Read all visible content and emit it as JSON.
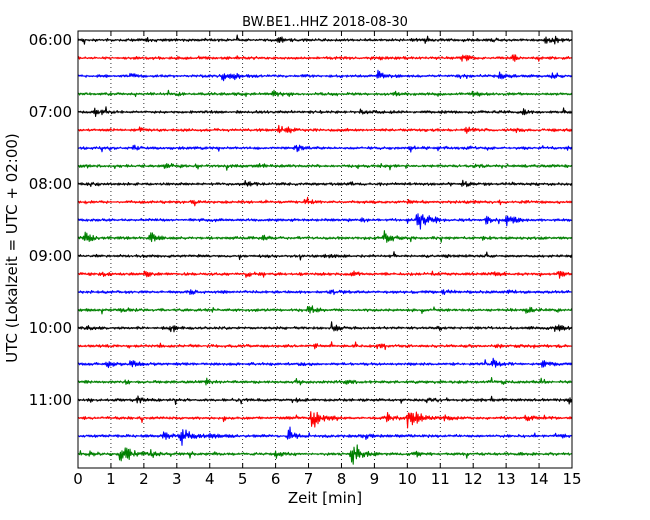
{
  "chart_data": {
    "type": "line",
    "title": "BW.BE1..HHZ 2018-08-30",
    "xlabel": "Zeit  [min]",
    "ylabel": "UTC (Lokalzeit = UTC + 02:00)",
    "xlim": [
      0,
      15
    ],
    "x_ticks": [
      0,
      1,
      2,
      3,
      4,
      5,
      6,
      7,
      8,
      9,
      10,
      11,
      12,
      13,
      14,
      15
    ],
    "x_tick_labels": [
      "0",
      "1",
      "2",
      "3",
      "4",
      "5",
      "6",
      "7",
      "8",
      "9",
      "10",
      "11",
      "12",
      "13",
      "14",
      "15"
    ],
    "grid": "vertical dotted",
    "trace_colors": [
      "#000000",
      "#ff0000",
      "#0000ff",
      "#008000"
    ],
    "y_tick_labels": [
      {
        "label": "06:00",
        "trace_index": 0
      },
      {
        "label": "07:00",
        "trace_index": 4
      },
      {
        "label": "08:00",
        "trace_index": 8
      },
      {
        "label": "09:00",
        "trace_index": 12
      },
      {
        "label": "10:00",
        "trace_index": 16
      },
      {
        "label": "11:00",
        "trace_index": 20
      }
    ],
    "traces": [
      {
        "start": "06:00",
        "events": [
          {
            "t": 6.1,
            "a": 0.35
          },
          {
            "t": 14.2,
            "a": 0.35
          },
          {
            "t": 14.5,
            "a": 0.3
          },
          {
            "t": 2.1,
            "a": 0.15
          },
          {
            "t": 12.6,
            "a": 0.15
          }
        ]
      },
      {
        "start": "06:15",
        "events": [
          {
            "t": 11.6,
            "a": 0.5
          },
          {
            "t": 13.2,
            "a": 0.3
          },
          {
            "t": 9.1,
            "a": 0.15
          },
          {
            "t": 3.0,
            "a": 0.12
          }
        ]
      },
      {
        "start": "06:30",
        "events": [
          {
            "t": 4.4,
            "a": 0.4
          },
          {
            "t": 4.7,
            "a": 0.3
          },
          {
            "t": 9.1,
            "a": 0.45
          },
          {
            "t": 12.8,
            "a": 0.3
          },
          {
            "t": 1.6,
            "a": 0.2
          },
          {
            "t": 14.4,
            "a": 0.15
          }
        ]
      },
      {
        "start": "06:45",
        "events": [
          {
            "t": 5.9,
            "a": 0.4
          },
          {
            "t": 9.6,
            "a": 0.2
          },
          {
            "t": 12.0,
            "a": 0.25
          },
          {
            "t": 3.0,
            "a": 0.12
          }
        ]
      },
      {
        "start": "07:00",
        "events": [
          {
            "t": 0.5,
            "a": 0.45
          },
          {
            "t": 8.6,
            "a": 0.25
          },
          {
            "t": 13.5,
            "a": 0.2
          },
          {
            "t": 11.0,
            "a": 0.12
          }
        ]
      },
      {
        "start": "07:15",
        "events": [
          {
            "t": 1.8,
            "a": 0.3
          },
          {
            "t": 6.1,
            "a": 0.35
          },
          {
            "t": 6.4,
            "a": 0.3
          },
          {
            "t": 11.8,
            "a": 0.25
          },
          {
            "t": 13.3,
            "a": 0.15
          }
        ]
      },
      {
        "start": "07:30",
        "events": [
          {
            "t": 1.7,
            "a": 0.25
          },
          {
            "t": 6.6,
            "a": 0.35
          },
          {
            "t": 10.1,
            "a": 0.3
          },
          {
            "t": 11.7,
            "a": 0.2
          },
          {
            "t": 14.9,
            "a": 0.5
          }
        ]
      },
      {
        "start": "07:45",
        "events": [
          {
            "t": 2.6,
            "a": 0.4
          },
          {
            "t": 5.5,
            "a": 0.2
          },
          {
            "t": 9.2,
            "a": 0.15
          },
          {
            "t": 12.0,
            "a": 0.12
          }
        ]
      },
      {
        "start": "08:00",
        "events": [
          {
            "t": 0.3,
            "a": 0.25
          },
          {
            "t": 5.1,
            "a": 0.35
          },
          {
            "t": 11.7,
            "a": 0.3
          },
          {
            "t": 8.2,
            "a": 0.15
          },
          {
            "t": 13.0,
            "a": 0.15
          }
        ]
      },
      {
        "start": "08:15",
        "events": [
          {
            "t": 6.9,
            "a": 0.3
          },
          {
            "t": 10.0,
            "a": 0.2
          },
          {
            "t": 12.8,
            "a": 0.15
          },
          {
            "t": 3.5,
            "a": 0.12
          }
        ]
      },
      {
        "start": "08:30",
        "events": [
          {
            "t": 10.3,
            "a": 1.2
          },
          {
            "t": 13.0,
            "a": 0.6
          },
          {
            "t": 12.4,
            "a": 0.3
          },
          {
            "t": 8.6,
            "a": 0.2
          },
          {
            "t": 4.2,
            "a": 0.15
          }
        ]
      },
      {
        "start": "08:45",
        "events": [
          {
            "t": 0.2,
            "a": 0.5
          },
          {
            "t": 2.2,
            "a": 0.45
          },
          {
            "t": 9.3,
            "a": 0.7
          },
          {
            "t": 5.6,
            "a": 0.2
          },
          {
            "t": 12.3,
            "a": 0.15
          }
        ]
      },
      {
        "start": "09:00",
        "events": [
          {
            "t": 7.5,
            "a": 0.15
          },
          {
            "t": 11.2,
            "a": 0.15
          },
          {
            "t": 3.6,
            "a": 0.1
          }
        ]
      },
      {
        "start": "09:15",
        "events": [
          {
            "t": 0.8,
            "a": 0.35
          },
          {
            "t": 2.0,
            "a": 0.3
          },
          {
            "t": 5.1,
            "a": 0.3
          },
          {
            "t": 8.3,
            "a": 0.25
          },
          {
            "t": 12.6,
            "a": 0.25
          },
          {
            "t": 14.6,
            "a": 0.25
          }
        ]
      },
      {
        "start": "09:30",
        "events": [
          {
            "t": 3.4,
            "a": 0.2
          },
          {
            "t": 7.7,
            "a": 0.2
          },
          {
            "t": 11.1,
            "a": 0.25
          },
          {
            "t": 13.1,
            "a": 0.15
          }
        ]
      },
      {
        "start": "09:45",
        "events": [
          {
            "t": 1.3,
            "a": 0.3
          },
          {
            "t": 7.0,
            "a": 0.45
          },
          {
            "t": 13.6,
            "a": 0.35
          },
          {
            "t": 4.1,
            "a": 0.15
          },
          {
            "t": 10.2,
            "a": 0.15
          }
        ]
      },
      {
        "start": "10:00",
        "events": [
          {
            "t": 0.2,
            "a": 0.3
          },
          {
            "t": 2.8,
            "a": 0.25
          },
          {
            "t": 7.7,
            "a": 0.4
          },
          {
            "t": 14.5,
            "a": 0.4
          },
          {
            "t": 10.9,
            "a": 0.15
          }
        ]
      },
      {
        "start": "10:15",
        "events": [
          {
            "t": 7.2,
            "a": 0.2
          },
          {
            "t": 9.1,
            "a": 0.2
          },
          {
            "t": 3.4,
            "a": 0.12
          },
          {
            "t": 12.7,
            "a": 0.12
          }
        ]
      },
      {
        "start": "10:30",
        "events": [
          {
            "t": 0.9,
            "a": 0.3
          },
          {
            "t": 1.6,
            "a": 0.35
          },
          {
            "t": 12.6,
            "a": 0.45
          },
          {
            "t": 14.1,
            "a": 0.3
          },
          {
            "t": 6.7,
            "a": 0.15
          }
        ]
      },
      {
        "start": "10:45",
        "events": [
          {
            "t": 1.4,
            "a": 0.2
          },
          {
            "t": 3.9,
            "a": 0.25
          },
          {
            "t": 8.1,
            "a": 0.15
          },
          {
            "t": 12.9,
            "a": 0.12
          }
        ]
      },
      {
        "start": "11:00",
        "events": [
          {
            "t": 1.8,
            "a": 0.35
          },
          {
            "t": 6.6,
            "a": 0.2
          },
          {
            "t": 10.6,
            "a": 0.2
          },
          {
            "t": 14.9,
            "a": 0.3
          }
        ]
      },
      {
        "start": "11:15",
        "events": [
          {
            "t": 7.1,
            "a": 1.0
          },
          {
            "t": 10.0,
            "a": 1.2
          },
          {
            "t": 9.4,
            "a": 0.4
          },
          {
            "t": 11.1,
            "a": 0.3
          },
          {
            "t": 13.6,
            "a": 0.3
          }
        ]
      },
      {
        "start": "11:30",
        "events": [
          {
            "t": 3.1,
            "a": 1.0
          },
          {
            "t": 2.6,
            "a": 0.4
          },
          {
            "t": 6.4,
            "a": 0.5
          },
          {
            "t": 8.7,
            "a": 0.3
          },
          {
            "t": 14.5,
            "a": 0.3
          },
          {
            "t": 4.0,
            "a": 0.25
          }
        ]
      },
      {
        "start": "11:45",
        "events": [
          {
            "t": 1.3,
            "a": 1.2
          },
          {
            "t": 8.3,
            "a": 1.1
          },
          {
            "t": 0.3,
            "a": 0.3
          },
          {
            "t": 2.2,
            "a": 0.3
          },
          {
            "t": 6.0,
            "a": 0.3
          },
          {
            "t": 10.2,
            "a": 0.25
          }
        ]
      }
    ]
  }
}
